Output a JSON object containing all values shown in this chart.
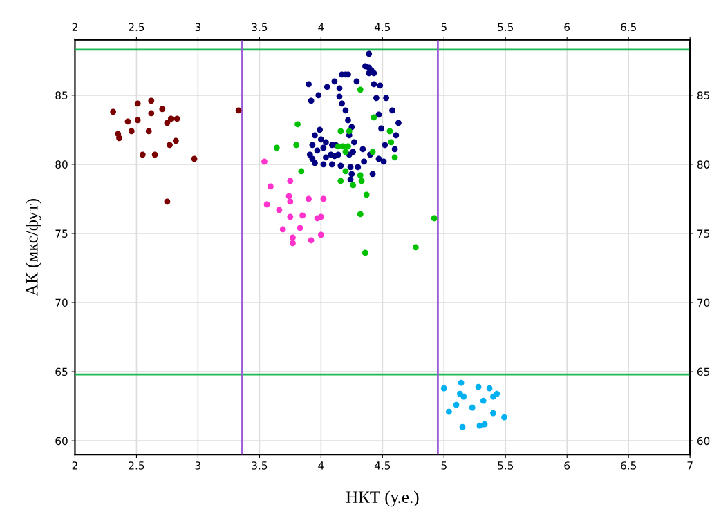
{
  "chart_data": {
    "type": "scatter",
    "xlabel": "НКТ (у.е.)",
    "ylabel": "АК (мкс/фут)",
    "xlim": [
      2,
      7
    ],
    "xticks": [
      2,
      2.5,
      3,
      3.5,
      4,
      4.5,
      5,
      5.5,
      6,
      6.5,
      7
    ],
    "x2lim": [
      2,
      7
    ],
    "x2ticks": [
      2,
      2.5,
      3,
      3.5,
      4,
      4.5,
      5,
      5.5,
      6,
      6.5,
      {
        "value": 7,
        "label": null
      }
    ],
    "ylim": [
      59,
      89
    ],
    "yticks": [
      60,
      65,
      70,
      75,
      80,
      85
    ],
    "y2lim": [
      59,
      89
    ],
    "y2ticks": [
      60,
      65,
      70,
      75,
      80,
      85
    ],
    "grid": true,
    "marker": "circle",
    "legend": false,
    "ref_lines": [
      {
        "axis": "y",
        "value": 88.3,
        "color": "#1db954"
      },
      {
        "axis": "y",
        "value": 64.8,
        "color": "#1db954"
      },
      {
        "axis": "x",
        "value": 3.36,
        "color": "#9b5bd6"
      },
      {
        "axis": "x",
        "value": 4.95,
        "color": "#9b5bd6"
      }
    ],
    "series": [
      {
        "color": "#7b0000",
        "x": [
          2.31,
          2.35,
          2.36,
          2.43,
          2.46,
          2.51,
          2.51,
          2.55,
          2.6,
          2.62,
          2.62,
          2.65,
          2.71,
          2.75,
          2.75,
          2.77,
          2.78,
          2.82,
          2.83,
          2.97,
          3.33
        ],
        "values": [
          83.8,
          82.2,
          81.9,
          83.1,
          82.4,
          84.4,
          83.2,
          80.7,
          82.4,
          84.6,
          83.7,
          80.7,
          84.0,
          83.0,
          77.3,
          81.4,
          83.3,
          81.7,
          83.3,
          80.4,
          83.9
        ]
      },
      {
        "color": "#ff33cc",
        "x": [
          3.54,
          3.59,
          3.56,
          3.75,
          3.74,
          3.75,
          3.66,
          3.9,
          4.02,
          3.75,
          3.85,
          3.97,
          4.0,
          3.69,
          3.83,
          3.77,
          3.77,
          3.92,
          4.0
        ],
        "values": [
          80.2,
          78.4,
          77.1,
          78.8,
          77.7,
          77.3,
          76.7,
          77.5,
          77.5,
          76.2,
          76.3,
          76.1,
          76.2,
          75.3,
          75.4,
          74.7,
          74.3,
          74.5,
          74.9
        ]
      },
      {
        "color": "#00b0f0",
        "x": [
          5.0,
          5.14,
          5.28,
          5.37,
          5.43,
          5.4,
          5.13,
          5.16,
          5.32,
          5.1,
          5.23,
          5.04,
          5.4,
          5.49,
          5.15,
          5.29,
          5.33
        ],
        "values": [
          63.8,
          64.2,
          63.9,
          63.8,
          63.4,
          63.2,
          63.4,
          63.2,
          62.9,
          62.6,
          62.4,
          62.1,
          62.0,
          61.7,
          61.0,
          61.1,
          61.2
        ]
      },
      {
        "color": "#000080",
        "x": [
          4.39,
          4.36,
          4.39,
          4.41,
          4.39,
          4.43,
          4.17,
          4.2,
          4.22,
          4.11,
          4.29,
          3.9,
          4.05,
          4.15,
          4.43,
          4.48,
          3.98,
          4.15,
          4.45,
          4.53,
          3.92,
          4.17,
          4.2,
          4.58,
          4.47,
          4.22,
          4.63,
          4.25,
          4.49,
          3.99,
          4.61,
          3.95,
          4.23,
          4.0,
          4.27,
          4.04,
          3.93,
          4.52,
          4.09,
          4.12,
          4.34,
          4.6,
          4.02,
          3.97,
          4.08,
          4.26,
          3.91,
          4.23,
          4.14,
          4.4,
          3.93,
          4.04,
          4.11,
          4.47,
          4.35,
          4.51,
          3.95,
          4.02,
          4.09,
          4.16,
          4.24,
          4.3,
          4.25,
          4.42,
          4.24
        ],
        "values": [
          88.0,
          87.1,
          87.0,
          86.8,
          86.6,
          86.6,
          86.5,
          86.5,
          86.5,
          86.0,
          86.0,
          85.8,
          85.6,
          85.5,
          85.8,
          85.7,
          85.0,
          84.9,
          84.8,
          84.8,
          84.6,
          84.4,
          83.9,
          83.9,
          83.6,
          83.2,
          83.0,
          82.7,
          82.6,
          82.5,
          82.1,
          82.1,
          82.1,
          81.8,
          81.6,
          81.6,
          81.4,
          81.4,
          81.4,
          81.4,
          81.1,
          81.1,
          81.2,
          81.0,
          80.7,
          80.9,
          80.7,
          80.7,
          80.7,
          80.7,
          80.4,
          80.5,
          80.6,
          80.4,
          80.2,
          80.2,
          80.1,
          80.0,
          80.0,
          79.9,
          79.8,
          79.8,
          79.3,
          79.3,
          78.9
        ]
      },
      {
        "color": "#00c000",
        "x": [
          4.32,
          4.43,
          3.81,
          4.16,
          4.23,
          4.56,
          3.8,
          4.57,
          3.64,
          4.14,
          4.18,
          4.22,
          4.2,
          4.42,
          4.6,
          3.84,
          4.2,
          4.16,
          4.26,
          4.32,
          4.33,
          4.37,
          4.32,
          4.92,
          4.77,
          4.36
        ],
        "values": [
          85.4,
          83.4,
          82.9,
          82.4,
          82.4,
          82.4,
          81.4,
          81.6,
          81.2,
          81.3,
          81.3,
          81.3,
          80.9,
          80.9,
          80.5,
          79.5,
          79.5,
          78.8,
          78.5,
          79.2,
          78.8,
          77.8,
          76.4,
          76.1,
          74.0,
          73.6
        ]
      }
    ]
  }
}
